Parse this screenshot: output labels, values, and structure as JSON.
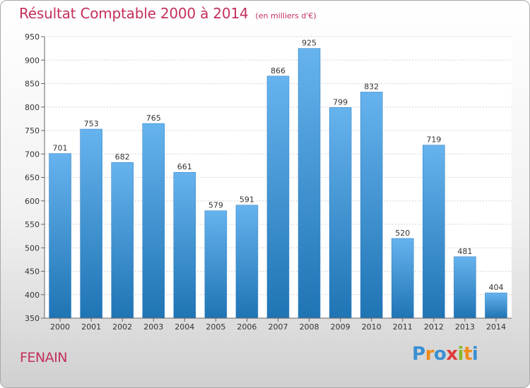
{
  "chart_data": {
    "type": "bar",
    "title": "Résultat Comptable 2000 à 2014",
    "subtitle": "(en milliers d'€)",
    "categories": [
      "2000",
      "2001",
      "2002",
      "2003",
      "2004",
      "2005",
      "2006",
      "2007",
      "2008",
      "2009",
      "2010",
      "2011",
      "2012",
      "2013",
      "2014"
    ],
    "values": [
      701,
      753,
      682,
      765,
      661,
      579,
      591,
      866,
      925,
      799,
      832,
      520,
      719,
      481,
      404
    ],
    "ylim": [
      350,
      950
    ],
    "yticks": [
      350,
      400,
      450,
      500,
      550,
      600,
      650,
      700,
      750,
      800,
      850,
      900,
      950
    ],
    "grid": true,
    "data_labels": true,
    "bar_color_top": "#66b3ee",
    "bar_color_bottom": "#1f74b4",
    "xlabel": "",
    "ylabel": ""
  },
  "place": "FENAIN",
  "brand": {
    "letters": [
      "P",
      "r",
      "o",
      "x",
      "i",
      "t",
      "i"
    ],
    "colors": [
      "#3b8fd1",
      "#ef8a1b",
      "#3b8fd1",
      "#e13a3a",
      "#86b92b",
      "#ef8a1b",
      "#3b8fd1"
    ]
  }
}
